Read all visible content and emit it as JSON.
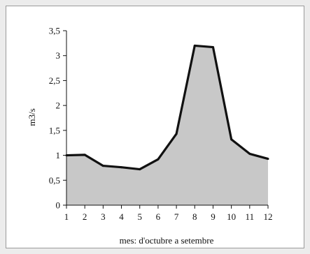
{
  "chart_data": {
    "type": "area",
    "title": "",
    "xlabel": "mes: d'octubre a setembre",
    "ylabel": "m3/s",
    "x": [
      1,
      2,
      3,
      4,
      5,
      6,
      7,
      8,
      9,
      10,
      11,
      12
    ],
    "x_tick_labels": [
      "1",
      "2",
      "3",
      "4",
      "5",
      "6",
      "7",
      "8",
      "9",
      "10",
      "11",
      "12"
    ],
    "values": [
      1.0,
      1.01,
      0.79,
      0.76,
      0.72,
      0.92,
      1.43,
      3.2,
      3.17,
      1.32,
      1.03,
      0.93
    ],
    "y_tick_labels": [
      "0",
      "0,5",
      "1",
      "1,5",
      "2",
      "2,5",
      "3",
      "3,5"
    ],
    "y_ticks": [
      0,
      0.5,
      1,
      1.5,
      2,
      2.5,
      3,
      3.5
    ],
    "ylim": [
      0,
      3.5
    ],
    "xlim": [
      1,
      12
    ],
    "grid": false,
    "legend": "none",
    "colors": {
      "fill": "#c8c8c8",
      "line": "#111111",
      "frame": "#9a9a9a"
    }
  }
}
